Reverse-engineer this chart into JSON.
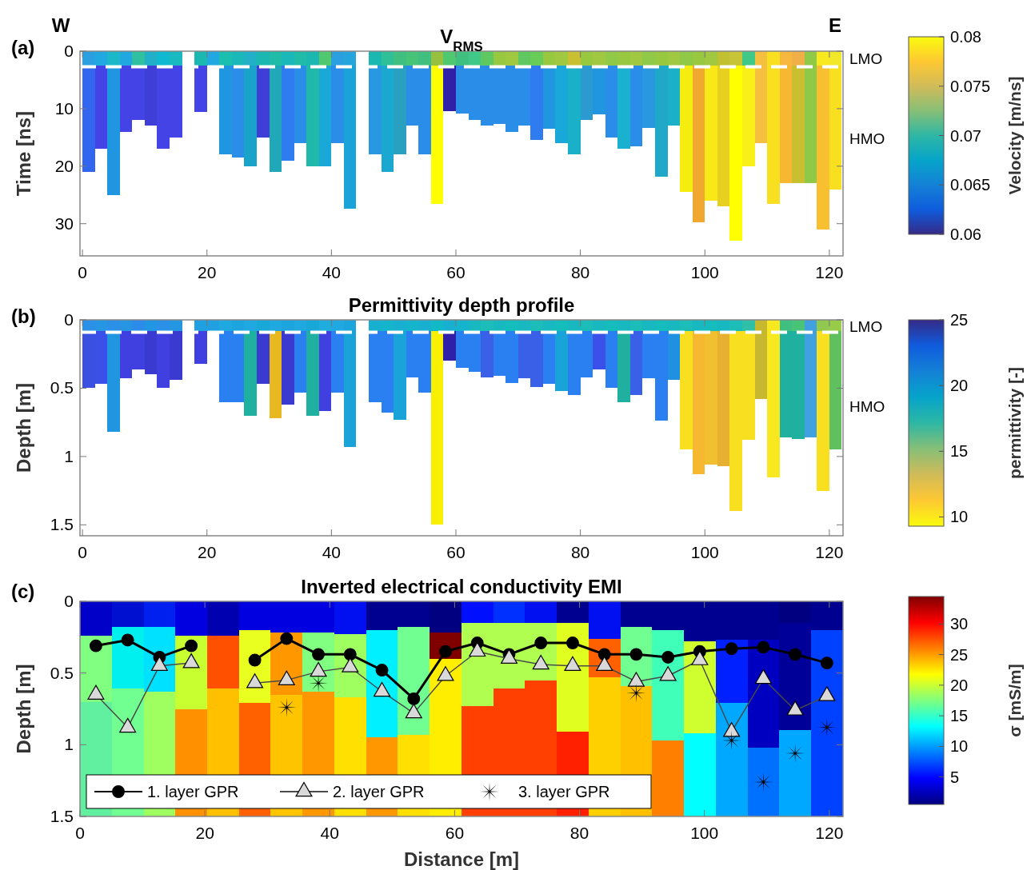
{
  "chart_data": [
    {
      "type": "bar",
      "stacked": true,
      "title": "V$_{RMS}$",
      "ylabel": "Time [ns]",
      "clabel": "Velocity [m/ns]",
      "clim": [
        0.06,
        0.08
      ],
      "cticks": [
        0.06,
        0.065,
        0.07,
        0.075,
        0.08
      ],
      "annotations": [
        "(a)",
        "W",
        "E",
        "LMO",
        "HMO"
      ],
      "x": [
        1,
        3,
        5,
        7,
        9,
        11,
        13,
        15,
        17,
        19,
        21,
        23,
        25,
        27,
        29,
        31,
        33,
        35,
        37,
        39,
        41,
        43,
        45,
        47,
        49,
        51,
        53,
        55,
        57,
        59,
        61,
        63,
        65,
        67,
        69,
        71,
        73,
        75,
        77,
        79,
        81,
        83,
        85,
        87,
        89,
        91,
        93,
        95,
        97,
        99,
        101,
        103,
        105,
        107,
        109,
        111,
        113,
        115,
        117,
        119,
        121
      ],
      "xlim": [
        -0.4,
        122.2
      ],
      "xticks": [
        0,
        20,
        40,
        60,
        80,
        100,
        120
      ],
      "ylim": [
        35.6,
        0
      ],
      "yticks": [
        0,
        10,
        20,
        30
      ],
      "ref_lines": [
        {
          "axis": "y",
          "value": 2.7,
          "color": "#ffffff",
          "line_style": "dashed"
        }
      ],
      "series": [
        {
          "values": [
            2.5,
            2.5,
            2.5,
            2.5,
            2.5,
            2.5,
            2.5,
            2.5,
            null,
            2.5,
            2.5,
            2.5,
            2.5,
            2.5,
            2.5,
            2.5,
            2.5,
            2.5,
            2.5,
            2.5,
            2.5,
            2.5,
            null,
            2.5,
            2.5,
            2.5,
            2.5,
            2.5,
            2.5,
            2.5,
            2.5,
            2.5,
            2.5,
            2.5,
            2.5,
            2.5,
            2.5,
            2.5,
            2.5,
            2.5,
            2.5,
            2.5,
            2.5,
            2.5,
            2.5,
            2.5,
            2.5,
            2.5,
            2.5,
            2.5,
            2.5,
            2.5,
            2.5,
            2.5,
            null,
            null,
            2.5,
            2.5,
            null,
            2.5,
            2.5
          ],
          "colors": [
            "#2aa0e0",
            "#22a8e0",
            "#1ab8c8",
            "#22a8e0",
            "#30c0a0",
            "#22b0c8",
            "#10b8d0",
            "#1ab8c0",
            null,
            "#1ab8b0",
            "#22a8e0",
            "#1abfb0",
            "#1ab8b8",
            "#22b0c8",
            "#1ab8b0",
            "#20bca8",
            "#1ab8b8",
            "#20bca8",
            "#1ab8b0",
            "#50c870",
            "#2aa0e0",
            "#26a4dc",
            null,
            "#1ab8b0",
            "#30c098",
            "#40c080",
            "#48c478",
            "#40c080",
            "#98c040",
            "#50c870",
            "#40c080",
            "#40c888",
            "#60c860",
            "#98c840",
            "#a0c840",
            "#60c860",
            "#68cc58",
            "#98c840",
            "#a0c840",
            "#c8c030",
            "#98c840",
            "#a0c840",
            "#90c848",
            "#98c840",
            "#a0c840",
            "#90c848",
            "#98c840",
            "#a0c840",
            "#90c848",
            "#98c840",
            "#a0c840",
            "#c0c030",
            "#c8c438",
            "#40c888",
            null,
            null,
            "#f8b840",
            "#f0b048",
            null,
            "#f8e820",
            "#f0e828"
          ]
        },
        {
          "values": [
            18.5,
            14.5,
            22.5,
            11.5,
            9.5,
            10.5,
            14.5,
            12.5,
            null,
            8.1,
            null,
            15.5,
            16,
            17.5,
            12.5,
            18.5,
            16.5,
            13.5,
            17.5,
            17.5,
            13.5,
            24.9,
            null,
            15.5,
            18.5,
            15.5,
            10.5,
            15.5,
            24,
            7.9,
            8.3,
            9.5,
            10.5,
            10.2,
            11.5,
            10.5,
            13,
            11,
            13.5,
            15.5,
            9.5,
            8.5,
            12.5,
            14.5,
            14,
            10.8,
            19.3,
            10.5,
            22,
            27.2,
            23.5,
            24.5,
            30.5,
            17.5,
            16,
            26.5,
            20.5,
            20.5,
            23,
            28.5,
            21.5
          ],
          "colors": [
            "#3366ee",
            "#4444e6",
            "#2196e0",
            "#4444e6",
            "#4444e6",
            "#3f3fd8",
            "#4444e6",
            "#4444e6",
            null,
            "#4444e6",
            null,
            "#2196e0",
            "#2a8de8",
            "#1aa3c8",
            "#3f3fd8",
            "#20a8b8",
            "#2f7bf0",
            "#2a8de8",
            "#20b8a8",
            "#1aa8d8",
            "#2a8de8",
            "#1aa3d8",
            null,
            "#2a98e0",
            "#1aa8d0",
            "#2aa0c0",
            "#2a8de8",
            "#2a8de8",
            "#ffff00",
            "#3020a8",
            "#2a8de8",
            "#2a8de8",
            "#2a8de8",
            "#2a8de8",
            "#2a8de8",
            "#2a8de8",
            "#2f7bf0",
            "#2196e0",
            "#1aa8d8",
            "#1ab0c8",
            "#2a9ad0",
            "#2196e0",
            "#2a8de8",
            "#1ab0d0",
            "#2a8de8",
            "#2a98e0",
            "#20a8c8",
            "#1ab0c8",
            "#f5ec10",
            "#f0a830",
            "#f8e818",
            "#e8d020",
            "#ffff00",
            "#f8f018",
            "#f5c040",
            "#f8e020",
            "#f5b830",
            "#c8c030",
            "#90c848",
            "#f8c030",
            "#f8e020"
          ]
        }
      ]
    },
    {
      "type": "bar",
      "stacked": true,
      "title": "Permittivity depth profile",
      "ylabel": "Depth [m]",
      "clabel": "permittivity [-]",
      "clim": [
        9.3,
        25
      ],
      "cticks": [
        10,
        15,
        20,
        25
      ],
      "annotations": [
        "(b)",
        "LMO",
        "HMO"
      ],
      "x": [
        1,
        3,
        5,
        7,
        9,
        11,
        13,
        15,
        17,
        19,
        21,
        23,
        25,
        27,
        29,
        31,
        33,
        35,
        37,
        39,
        41,
        43,
        45,
        47,
        49,
        51,
        53,
        55,
        57,
        59,
        61,
        63,
        65,
        67,
        69,
        71,
        73,
        75,
        77,
        79,
        81,
        83,
        85,
        87,
        89,
        91,
        93,
        95,
        97,
        99,
        101,
        103,
        105,
        107,
        109,
        111,
        113,
        115,
        117,
        119,
        121
      ],
      "xlim": [
        -0.4,
        122.2
      ],
      "xticks": [
        0,
        20,
        40,
        60,
        80,
        100,
        120
      ],
      "ylim": [
        1.58,
        0
      ],
      "yticks": [
        0,
        0.5,
        1,
        1.5
      ],
      "ref_lines": [
        {
          "axis": "y",
          "value": 0.09,
          "color": "#ffffff",
          "line_style": "dashed"
        }
      ],
      "series": [
        {
          "values": [
            0.08,
            0.08,
            0.08,
            0.08,
            0.08,
            0.08,
            0.08,
            0.08,
            null,
            0.08,
            0.08,
            0.08,
            0.08,
            0.08,
            0.08,
            0.08,
            0.08,
            0.08,
            0.08,
            0.08,
            0.08,
            0.08,
            null,
            0.08,
            0.08,
            0.08,
            0.08,
            0.08,
            0.08,
            0.08,
            0.08,
            0.08,
            0.08,
            0.08,
            0.08,
            0.08,
            0.08,
            0.08,
            0.08,
            0.08,
            0.08,
            0.08,
            0.08,
            0.08,
            0.08,
            0.08,
            0.08,
            0.08,
            0.08,
            0.08,
            0.08,
            0.08,
            0.08,
            0.08,
            null,
            null,
            0.08,
            0.08,
            null,
            0.08,
            0.08
          ],
          "colors": [
            "#2a90e8",
            "#2496e4",
            "#2a90e8",
            "#2696e2",
            "#2a8ce8",
            "#2096e4",
            "#2a90e8",
            "#2496e2",
            null,
            "#20a0e0",
            "#20a0e0",
            "#20a8e0",
            "#1ca4dc",
            "#20a8e0",
            "#18a8d8",
            "#20a8e0",
            "#1ca4dc",
            "#20a8e0",
            "#18a8d8",
            "#20acdc",
            "#20a8e0",
            "#1ca4dc",
            null,
            "#18b0d0",
            "#14b4cc",
            "#18b0d0",
            "#14b4cc",
            "#18b0d0",
            "#10b8c8",
            "#18b0d0",
            "#14b4cc",
            "#18b8c0",
            "#1cbcb8",
            "#18b8c0",
            "#14bcbc",
            "#18b8c0",
            "#1cbcb8",
            "#18b8c0",
            "#14bcbc",
            "#18b8c0",
            "#1cbcb8",
            "#18b8c0",
            "#14bcbc",
            "#18b8c0",
            "#1cbcb8",
            "#18b8c0",
            "#14bcbc",
            "#18b8c0",
            "#1cbcb8",
            "#18b8c0",
            "#14bcbc",
            "#18b8c0",
            "#1cbcb8",
            "#30c0a8",
            null,
            null,
            "#40c080",
            "#48c478",
            null,
            "#90c850",
            "#98cc48"
          ]
        },
        {
          "values": [
            0.42,
            0.39,
            0.74,
            0.35,
            0.28,
            0.32,
            0.42,
            0.36,
            null,
            0.24,
            null,
            0.52,
            0.52,
            0.62,
            0.39,
            0.64,
            0.54,
            0.45,
            0.62,
            0.59,
            0.45,
            0.85,
            null,
            0.52,
            0.6,
            0.65,
            0.34,
            0.45,
            1.42,
            0.22,
            0.27,
            0.3,
            0.34,
            0.33,
            0.38,
            0.35,
            0.41,
            0.39,
            0.44,
            0.47,
            0.34,
            0.28,
            0.42,
            0.52,
            0.47,
            0.35,
            0.66,
            0.36,
            0.87,
            1.05,
            0.98,
            0.99,
            1.32,
            0.8,
            0.58,
            1.15,
            0.78,
            0.79,
            0.86,
            1.17,
            0.87
          ],
          "colors": [
            "#3a50e0",
            "#3a50e8",
            "#2196e0",
            "#4040e0",
            "#4040e0",
            "#3a3ad0",
            "#4040e0",
            "#3a3ad0",
            null,
            "#4040e0",
            null,
            "#2a80f0",
            "#2a80f0",
            "#20b0a0",
            "#3a3ad0",
            "#e8b820",
            "#3a3ad0",
            "#2a80f0",
            "#20b0a0",
            "#4040e0",
            "#2a80f0",
            "#1aa3d8",
            null,
            "#2a80f0",
            "#2a80f0",
            "#1aa3d8",
            "#2a80f0",
            "#2a80f0",
            "#f8f000",
            "#3020a8",
            "#2a80f0",
            "#2a80f0",
            "#3a60e8",
            "#2a80f0",
            "#2a80f0",
            "#3a60e8",
            "#3a60e8",
            "#2a80f0",
            "#1aa3d8",
            "#2a80f0",
            "#2a80f0",
            "#3a50e8",
            "#2a80f0",
            "#20b0a0",
            "#3a60e8",
            "#2a80f0",
            "#2a80f0",
            "#2090e0",
            "#f8e020",
            "#f5b830",
            "#f0c030",
            "#e8b030",
            "#f8e020",
            "#f8e020",
            "#c8b830",
            "#f8e820",
            "#20b0a0",
            "#20b0a0",
            "#40a0e0",
            "#f8e020",
            "#60c060"
          ]
        }
      ]
    },
    {
      "type": "bar",
      "stacked": true,
      "title": "Inverted electrical conductivity EMI",
      "xlabel": "Distance [m]",
      "ylabel": "Depth [m]",
      "clabel": "σ [mS/m]",
      "clim": [
        0.5,
        34.5
      ],
      "cticks": [
        5,
        10,
        15,
        20,
        25,
        30
      ],
      "annotations": [
        "(c)"
      ],
      "legend": "bottom left",
      "x": [
        2.55,
        7.64,
        12.73,
        17.82,
        22.91,
        28.0,
        33.09,
        38.18,
        43.27,
        48.36,
        53.45,
        58.54,
        63.63,
        68.72,
        73.81,
        78.9,
        83.99,
        89.08,
        94.17,
        99.26,
        104.35,
        109.44,
        114.53,
        119.62
      ],
      "xlim": [
        0,
        122.2
      ],
      "xticks": [
        0,
        20,
        40,
        60,
        80,
        100,
        120
      ],
      "ylim": [
        1.5,
        0
      ],
      "yticks": [
        0,
        0.5,
        1,
        1.5
      ],
      "series": [
        {
          "values": [
            0.24,
            0.18,
            0.18,
            0.24,
            0.24,
            0.2,
            0.22,
            0.22,
            0.23,
            0.2,
            0.18,
            0.22,
            0.15,
            0.15,
            0.15,
            0.15,
            0.26,
            0.18,
            0.2,
            0.28,
            0.27,
            0.27,
            0.15,
            0.2
          ],
          "colors": [
            "#0000c8",
            "#0010d0",
            "#0020f0",
            "#0000e0",
            "#0000b0",
            "#0000e0",
            "#0000e0",
            "#0000e0",
            "#0010f0",
            "#000090",
            "#000090",
            "#000080",
            "#0010ff",
            "#0030ff",
            "#0010f0",
            "#000090",
            "#0010f0",
            "#000090",
            "#000090",
            "#000090",
            "#000090",
            "#000090",
            "#000080",
            "#000090"
          ]
        },
        {
          "values": [
            0.46,
            0.43,
            0.45,
            0.51,
            0.37,
            0.51,
            0.43,
            0.41,
            0.44,
            0.75,
            0.75,
            0.18,
            0.58,
            0.46,
            0.4,
            0.76,
            0.27,
            0.41,
            0.77,
            0.64,
            0.44,
            0.75,
            0.75,
            1.3
          ],
          "colors": [
            "#80ff80",
            "#00f0f0",
            "#00e0ff",
            "#c8ff30",
            "#ff5000",
            "#e8ff20",
            "#ff9800",
            "#80ff80",
            "#a0ff60",
            "#00f0ff",
            "#70ff90",
            "#800000",
            "#b0ff50",
            "#b0ff50",
            "#b0ff50",
            "#e0ff20",
            "#ff6000",
            "#70ff90",
            "#40ffb8",
            "#d0ff30",
            "#0020ff",
            "#0000c0",
            "#000098",
            "#0040ff"
          ]
        },
        {
          "values": [
            0.8,
            0.89,
            0.87,
            0.75,
            0.89,
            0.79,
            0.85,
            0.87,
            0.83,
            0.55,
            0.57,
            1.1,
            0.77,
            0.89,
            0.95,
            0.59,
            0.97,
            0.91,
            0.53,
            0.58,
            0.79,
            0.48,
            0.6,
            0
          ],
          "colors": [
            "#60f0a0",
            "#70ff90",
            "#a0ff60",
            "#ff9000",
            "#ffc000",
            "#ff6000",
            "#ffc400",
            "#ff9800",
            "#ffe000",
            "#ff9800",
            "#ffe000",
            "#ffee00",
            "#ff4000",
            "#ff4000",
            "#ff4000",
            "#ff2000",
            "#ffd000",
            "#ffc000",
            "#ff8000",
            "#00ffff",
            "#00a8ff",
            "#0070ff",
            "#00a8ff",
            "#0040ff"
          ]
        },
        {
          "type": "line",
          "name": "1. layer GPR",
          "color": "#000000",
          "marker": "circle",
          "values": [
            0.31,
            0.27,
            0.39,
            0.31,
            null,
            0.41,
            0.26,
            0.37,
            0.37,
            0.48,
            0.68,
            0.35,
            0.29,
            0.37,
            0.29,
            0.29,
            0.37,
            0.37,
            0.39,
            0.35,
            0.33,
            0.32,
            0.37,
            0.43
          ]
        },
        {
          "type": "line",
          "name": "2. layer GPR",
          "color": "#d9d9d9",
          "marker": "triangle",
          "values": [
            0.65,
            0.88,
            0.45,
            0.43,
            null,
            0.57,
            0.55,
            0.49,
            0.46,
            0.63,
            0.78,
            0.52,
            0.35,
            0.4,
            0.44,
            0.45,
            0.45,
            0.56,
            0.52,
            0.41,
            0.91,
            0.54,
            0.76,
            0.66
          ]
        },
        {
          "type": "scatter",
          "name": "3. layer GPR",
          "color": "#000000",
          "marker": "cross",
          "values": [
            null,
            null,
            null,
            null,
            null,
            null,
            0.74,
            0.57,
            null,
            null,
            null,
            null,
            null,
            null,
            null,
            null,
            null,
            0.64,
            null,
            null,
            0.97,
            1.26,
            1.06,
            0.88
          ]
        }
      ]
    }
  ]
}
